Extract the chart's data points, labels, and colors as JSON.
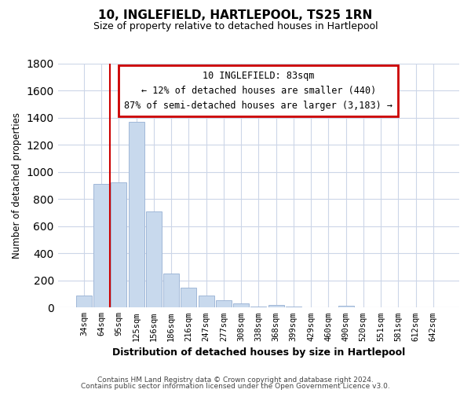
{
  "title": "10, INGLEFIELD, HARTLEPOOL, TS25 1RN",
  "subtitle": "Size of property relative to detached houses in Hartlepool",
  "xlabel": "Distribution of detached houses by size in Hartlepool",
  "ylabel": "Number of detached properties",
  "bar_labels": [
    "34sqm",
    "64sqm",
    "95sqm",
    "125sqm",
    "156sqm",
    "186sqm",
    "216sqm",
    "247sqm",
    "277sqm",
    "308sqm",
    "338sqm",
    "368sqm",
    "399sqm",
    "429sqm",
    "460sqm",
    "490sqm",
    "520sqm",
    "551sqm",
    "581sqm",
    "612sqm",
    "642sqm"
  ],
  "bar_values": [
    90,
    910,
    920,
    1370,
    710,
    250,
    145,
    90,
    55,
    30,
    5,
    20,
    5,
    0,
    0,
    15,
    0,
    0,
    0,
    0,
    0
  ],
  "bar_fill_color": "#c8d9ed",
  "bar_edge_color": "#a0b8d8",
  "vline_color": "#cc0000",
  "vline_index": 2,
  "ylim": [
    0,
    1800
  ],
  "yticks": [
    0,
    200,
    400,
    600,
    800,
    1000,
    1200,
    1400,
    1600,
    1800
  ],
  "annotation_line0": "10 INGLEFIELD: 83sqm",
  "annotation_line1": "← 12% of detached houses are smaller (440)",
  "annotation_line2": "87% of semi-detached houses are larger (3,183) →",
  "footer_line1": "Contains HM Land Registry data © Crown copyright and database right 2024.",
  "footer_line2": "Contains public sector information licensed under the Open Government Licence v3.0.",
  "background_color": "#ffffff",
  "grid_color": "#ccd6e8"
}
